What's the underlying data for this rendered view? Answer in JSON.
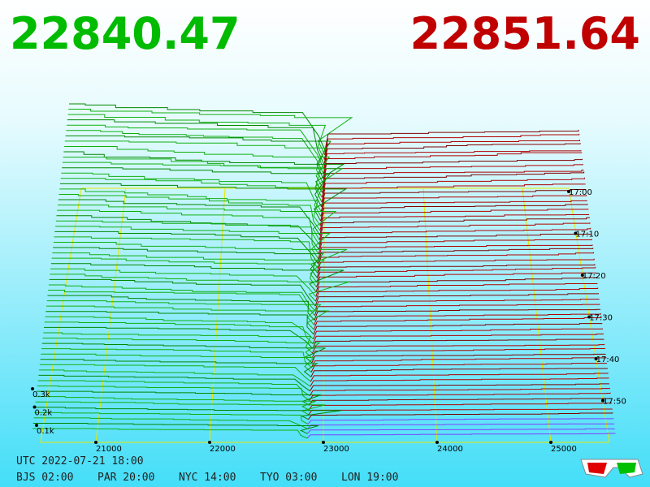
{
  "header": {
    "bid": "22840.47",
    "ask": "22851.64"
  },
  "price_axis": [
    "21000",
    "22000",
    "23000",
    "24000",
    "25000"
  ],
  "time_axis": [
    "17:00",
    "17:10",
    "17:20",
    "17:30",
    "17:40",
    "17:50"
  ],
  "volume_axis": [
    "0.3k",
    "0.2k",
    "0.1k"
  ],
  "footer": {
    "utc": "UTC 2022-07-21 18:00",
    "zones": [
      "BJS 02:00",
      "PAR 20:00",
      "NYC 14:00",
      "TYO 03:00",
      "LON 19:00"
    ]
  }
}
